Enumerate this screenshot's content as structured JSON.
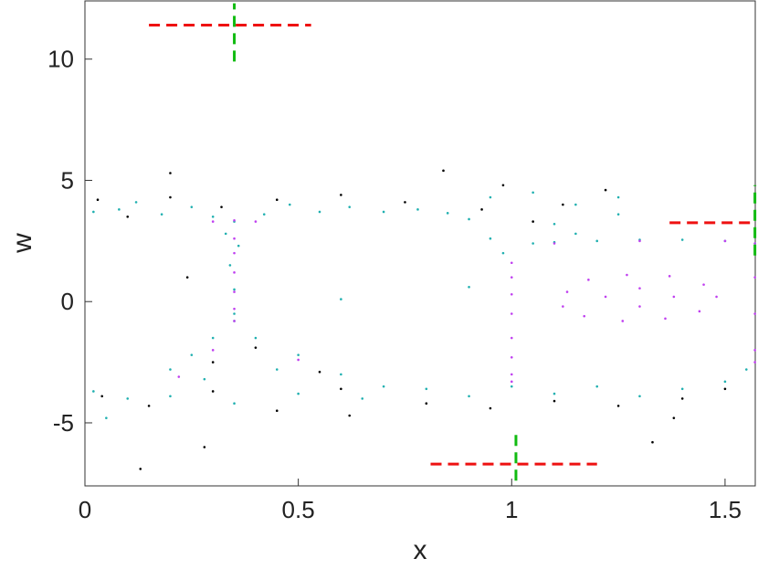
{
  "chart_data": {
    "type": "scatter",
    "xlabel": "x",
    "ylabel": "w",
    "xlim": [
      0,
      1.5708
    ],
    "ylim": [
      -7.6,
      12.4
    ],
    "xticks": [
      0,
      0.5,
      1,
      1.5
    ],
    "yticks": [
      -5,
      0,
      5,
      10
    ],
    "series": [
      {
        "color": "#000000",
        "x": [
          0.03,
          0.1,
          0.2,
          0.32,
          0.45,
          0.6,
          0.75,
          0.93,
          1.05,
          1.12,
          1.22,
          0.98,
          0.2,
          0.4,
          0.3,
          0.55,
          0.04,
          0.15,
          0.3,
          0.45,
          0.6,
          0.8,
          0.95,
          1.1,
          1.25,
          1.4,
          1.5,
          0.13,
          0.28,
          0.62,
          0.24,
          0.84,
          1.38,
          1.33
        ],
        "y": [
          4.2,
          3.5,
          4.3,
          3.9,
          4.2,
          4.4,
          4.1,
          3.8,
          3.3,
          4.0,
          4.6,
          4.8,
          5.3,
          -1.9,
          -2.5,
          -2.9,
          -3.9,
          -4.3,
          -3.7,
          -4.5,
          -3.6,
          -4.2,
          -4.4,
          -4.1,
          -4.3,
          -4.0,
          -3.6,
          -6.9,
          -6.0,
          -4.7,
          1.0,
          5.4,
          -4.8,
          -5.8
        ]
      },
      {
        "color": "#20b0b0",
        "x": [
          0.02,
          0.08,
          0.12,
          0.18,
          0.25,
          0.3,
          0.42,
          0.48,
          0.55,
          0.62,
          0.7,
          0.78,
          0.85,
          0.95,
          1.05,
          1.15,
          1.25,
          0.35,
          0.33,
          0.36,
          0.34,
          0.35,
          0.35,
          0.35,
          0.3,
          0.25,
          0.2,
          0.4,
          0.5,
          0.6,
          0.7,
          0.28,
          0.45,
          0.02,
          0.1,
          0.2,
          0.35,
          0.5,
          0.65,
          0.8,
          0.9,
          1.0,
          1.1,
          1.2,
          1.3,
          1.4,
          1.5,
          1.55,
          0.9,
          0.95,
          0.98,
          1.05,
          1.15,
          1.25,
          1.1,
          1.1,
          1.2,
          1.3,
          1.4,
          1.5,
          1.57,
          0.05,
          0.9,
          0.6
        ],
        "y": [
          3.7,
          3.8,
          4.1,
          3.6,
          3.9,
          3.5,
          3.6,
          4.0,
          3.7,
          3.9,
          3.7,
          3.8,
          3.65,
          4.3,
          4.5,
          4.0,
          4.3,
          3.3,
          2.8,
          2.3,
          1.5,
          0.5,
          -0.5,
          -0.8,
          -1.5,
          -2.2,
          -2.8,
          -1.5,
          -2.2,
          -3.0,
          -3.5,
          -3.2,
          -2.8,
          -3.7,
          -4.0,
          -3.9,
          -4.2,
          -3.8,
          -4.0,
          -3.6,
          -3.9,
          -3.5,
          -3.8,
          -3.5,
          -3.9,
          -3.6,
          -3.3,
          -2.8,
          3.4,
          2.6,
          2.0,
          2.4,
          2.8,
          3.6,
          3.2,
          2.45,
          2.5,
          2.55,
          2.55,
          2.5,
          2.4,
          -4.8,
          0.6,
          0.1
        ]
      },
      {
        "color": "#c040f0",
        "x": [
          0.35,
          0.3,
          0.4,
          0.35,
          0.35,
          0.35,
          0.35,
          0.35,
          0.35,
          1.0,
          1.0,
          1.0,
          1.0,
          1.0,
          1.0,
          1.0,
          1.0,
          1.48,
          1.45,
          1.37,
          1.27,
          1.18,
          1.13,
          1.12,
          1.17,
          1.26,
          1.36,
          1.44,
          1.38,
          1.3,
          1.22,
          1.3,
          1.57,
          1.57,
          1.57,
          1.57,
          1.57,
          1.1,
          1.3,
          1.5,
          0.22,
          0.5,
          0.3
        ],
        "y": [
          3.35,
          3.3,
          3.3,
          2.6,
          2.0,
          1.2,
          0.4,
          -0.3,
          -0.8,
          1.6,
          1.0,
          0.3,
          -0.5,
          -1.5,
          -2.3,
          -3.0,
          -3.3,
          0.2,
          0.7,
          1.05,
          1.1,
          0.9,
          0.4,
          -0.2,
          -0.6,
          -0.8,
          -0.7,
          -0.4,
          0.2,
          0.55,
          0.2,
          -0.2,
          2.4,
          1.0,
          -0.5,
          -2.0,
          -2.5,
          2.4,
          2.5,
          2.5,
          -3.1,
          -2.4,
          -2.0
        ]
      }
    ],
    "lines": [
      {
        "color": "#ee1111",
        "style": "dashed",
        "x": [
          0.15,
          0.53
        ],
        "y": [
          11.4,
          11.4
        ]
      },
      {
        "color": "#11bb11",
        "style": "dashed",
        "x": [
          0.35,
          0.35
        ],
        "y": [
          9.9,
          12.3
        ]
      },
      {
        "color": "#ee1111",
        "style": "dashed",
        "x": [
          0.81,
          1.2
        ],
        "y": [
          -6.7,
          -6.7
        ]
      },
      {
        "color": "#11bb11",
        "style": "dashed",
        "x": [
          1.01,
          1.01
        ],
        "y": [
          -5.5,
          -7.6
        ]
      },
      {
        "color": "#ee1111",
        "style": "dashed",
        "x": [
          1.37,
          1.57
        ],
        "y": [
          3.25,
          3.25
        ]
      },
      {
        "color": "#11bb11",
        "style": "dashed",
        "x": [
          1.57,
          1.57
        ],
        "y": [
          1.9,
          4.8
        ]
      }
    ]
  }
}
